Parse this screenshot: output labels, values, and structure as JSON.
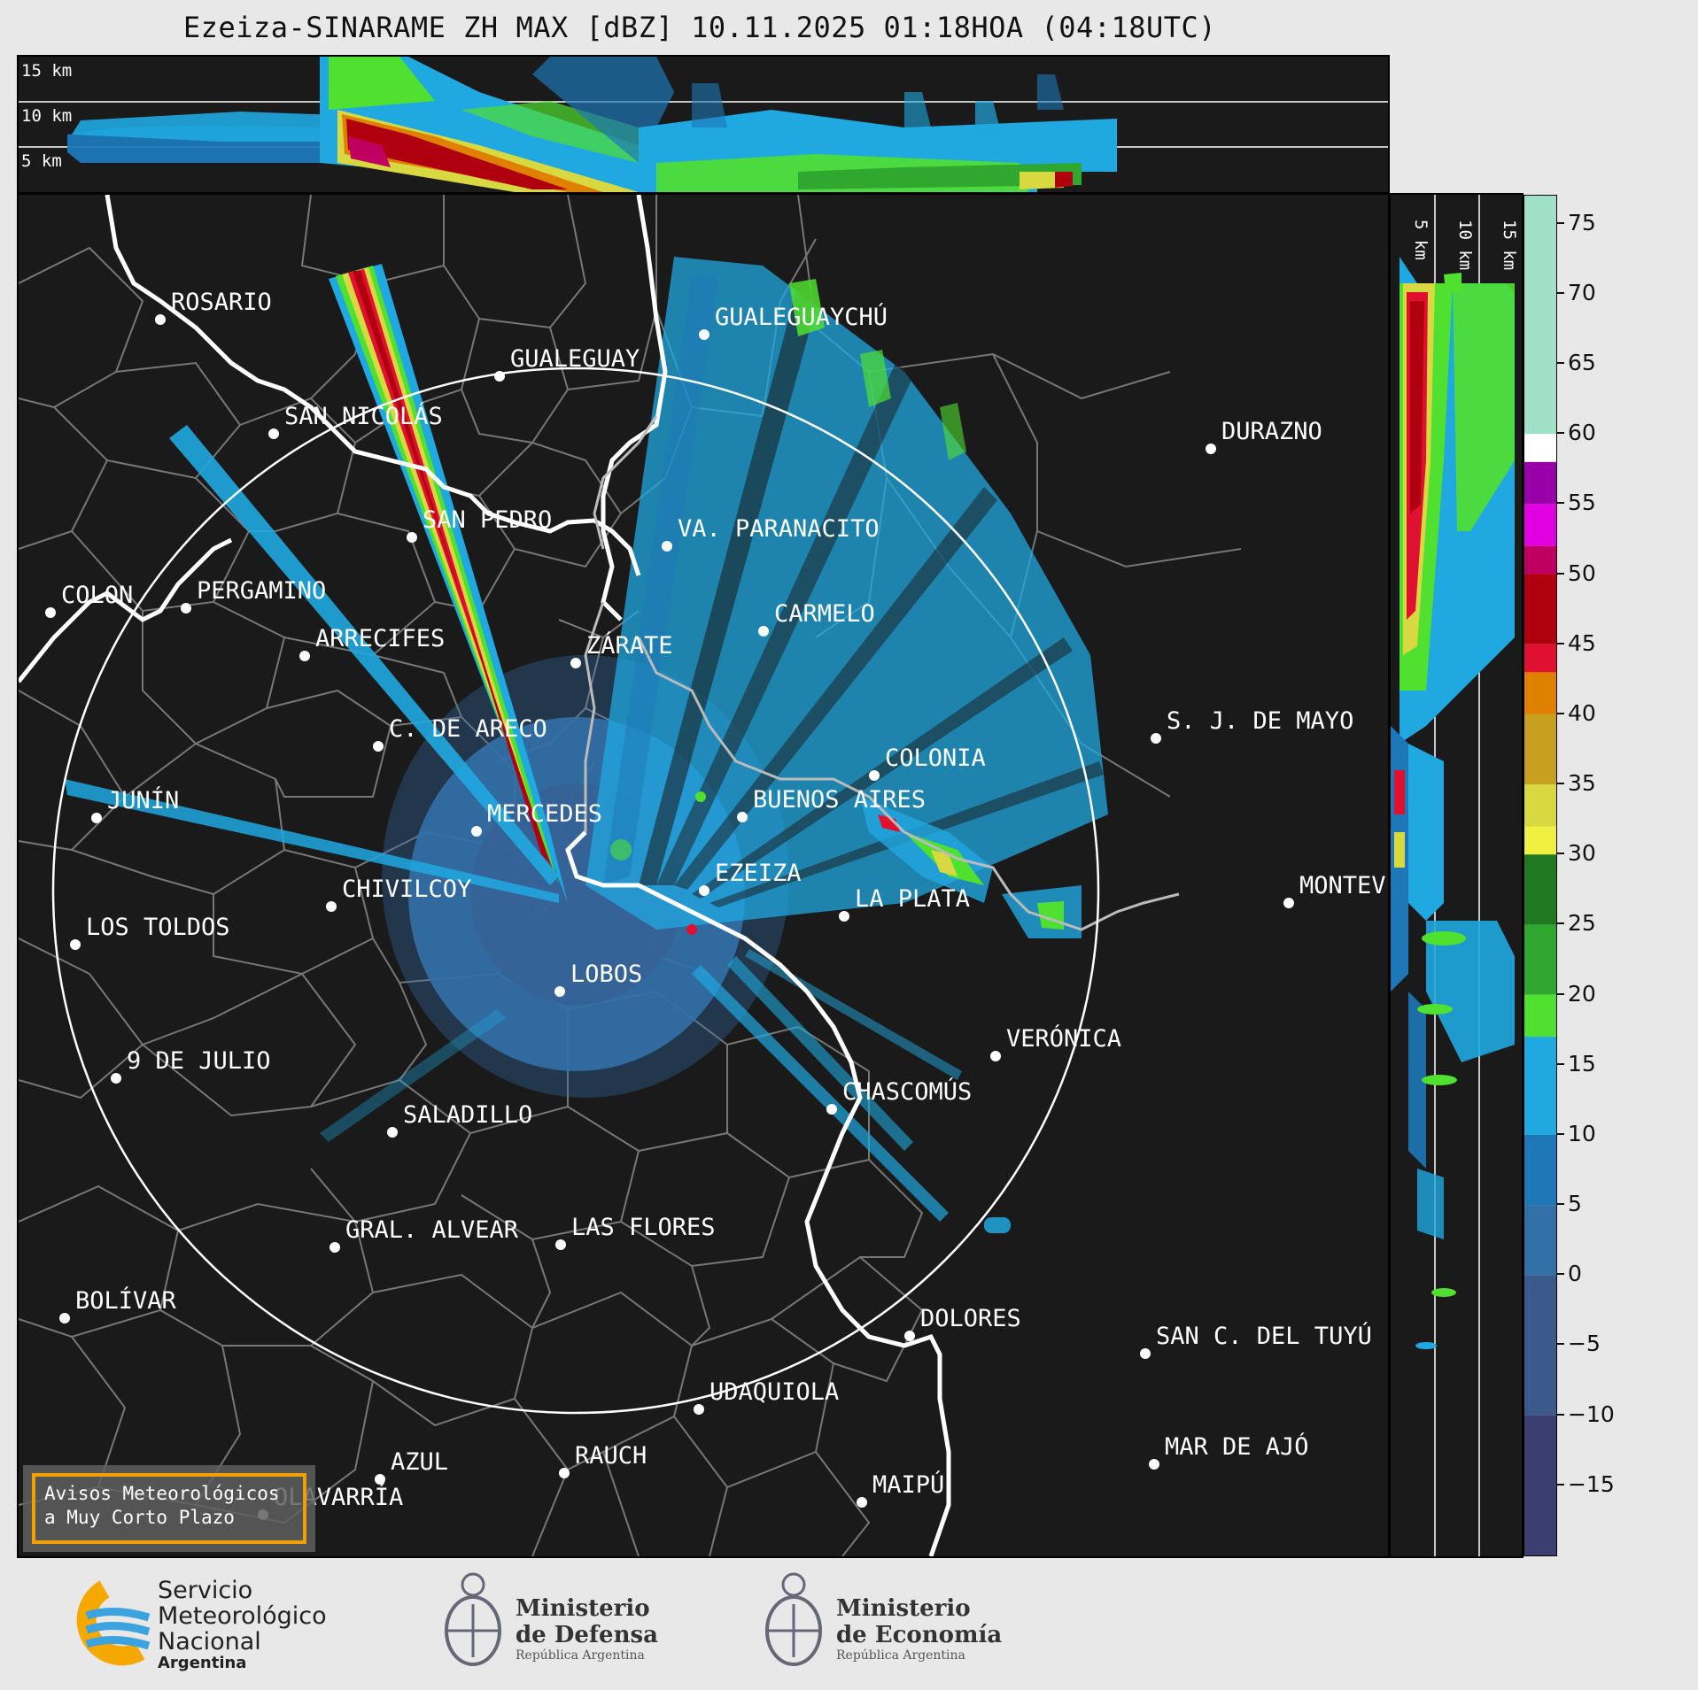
{
  "title": "Ezeiza-SINARAME ZH MAX [dBZ] 10.11.2025 01:18HOA (04:18UTC)",
  "height_labels_ew": [
    "15 km",
    "10 km",
    "5 km"
  ],
  "height_labels_ns": [
    "5 km",
    "10 km",
    "15 km"
  ],
  "colorbar": {
    "ticks": [
      "75",
      "70",
      "65",
      "60",
      "55",
      "50",
      "45",
      "40",
      "35",
      "30",
      "25",
      "20",
      "15",
      "10",
      "5",
      "0",
      "−5",
      "−10",
      "−15"
    ],
    "scale_bins": [
      {
        "from": 60,
        "to": 77,
        "color": "#9ee0c8"
      },
      {
        "from": 58,
        "to": 60,
        "color": "#ffffff"
      },
      {
        "from": 55,
        "to": 58,
        "color": "#9a00a8"
      },
      {
        "from": 52,
        "to": 55,
        "color": "#e000e0"
      },
      {
        "from": 50,
        "to": 52,
        "color": "#c00060"
      },
      {
        "from": 45,
        "to": 50,
        "color": "#b00010"
      },
      {
        "from": 43,
        "to": 45,
        "color": "#e01030"
      },
      {
        "from": 40,
        "to": 43,
        "color": "#e08000"
      },
      {
        "from": 35,
        "to": 40,
        "color": "#c8a020"
      },
      {
        "from": 32,
        "to": 35,
        "color": "#d8d840"
      },
      {
        "from": 30,
        "to": 32,
        "color": "#f0f040"
      },
      {
        "from": 25,
        "to": 30,
        "color": "#207820"
      },
      {
        "from": 20,
        "to": 25,
        "color": "#30a830"
      },
      {
        "from": 17,
        "to": 20,
        "color": "#50e030"
      },
      {
        "from": 10,
        "to": 17,
        "color": "#20a8e0"
      },
      {
        "from": 5,
        "to": 10,
        "color": "#1e78b8"
      },
      {
        "from": 0,
        "to": 5,
        "color": "#3470a8"
      },
      {
        "from": -10,
        "to": 0,
        "color": "#3a5a8c"
      },
      {
        "from": -20,
        "to": -10,
        "color": "#3a3e70"
      }
    ]
  },
  "cities": [
    {
      "label": "ROSARIO"
    },
    {
      "label": "GUALEGUAYCHÚ"
    },
    {
      "label": "GUALEGUAY"
    },
    {
      "label": "SAN NICOLÁS"
    },
    {
      "label": "DURAZNO"
    },
    {
      "label": "SAN PEDRO"
    },
    {
      "label": "VA. PARANACITO"
    },
    {
      "label": "COLON"
    },
    {
      "label": "PERGAMINO"
    },
    {
      "label": "CARMELO"
    },
    {
      "label": "ARRECIFES"
    },
    {
      "label": "ZÁRATE"
    },
    {
      "label": "S. J. DE MAYO"
    },
    {
      "label": "C. DE ARECO"
    },
    {
      "label": "COLONIA"
    },
    {
      "label": "JUNÍN"
    },
    {
      "label": "BUENOS AIRES"
    },
    {
      "label": "MERCEDES"
    },
    {
      "label": "MONTEVIDEO"
    },
    {
      "label": "EZEIZA"
    },
    {
      "label": "CHIVILCOY"
    },
    {
      "label": "LA PLATA"
    },
    {
      "label": "LOS TOLDOS"
    },
    {
      "label": "LOBOS"
    },
    {
      "label": "VERÓNICA"
    },
    {
      "label": "9 DE JULIO"
    },
    {
      "label": "CHASCOMÚS"
    },
    {
      "label": "SALADILLO"
    },
    {
      "label": "GRAL. ALVEAR"
    },
    {
      "label": "LAS FLORES"
    },
    {
      "label": "BOLÍVAR"
    },
    {
      "label": "DOLORES"
    },
    {
      "label": "SAN C. DEL TUYÚ"
    },
    {
      "label": "UDAQUIOLA"
    },
    {
      "label": "MAR DE AJÓ"
    },
    {
      "label": "AZUL"
    },
    {
      "label": "RAUCH"
    },
    {
      "label": "MAIPÚ"
    },
    {
      "label": "OLAVARRÍA"
    }
  ],
  "warning_box": {
    "line1": "Avisos Meteorológicos",
    "line2": "a Muy Corto Plazo"
  },
  "logos": {
    "smn": {
      "line1": "Servicio",
      "line2": "Meteorológico",
      "line3": "Nacional",
      "line4": "Argentina"
    },
    "defensa": {
      "line1": "Ministerio",
      "line2": "de Defensa",
      "line3": "República Argentina"
    },
    "economia": {
      "line1": "Ministerio",
      "line2": "de Economía",
      "line3": "República Argentina"
    }
  },
  "colors": {
    "panel_bg": "#1a1a1a",
    "city_label": "#ffffff",
    "coast": "#ffffff",
    "boundaries": "#777777",
    "warning_border": "#f0a000"
  }
}
